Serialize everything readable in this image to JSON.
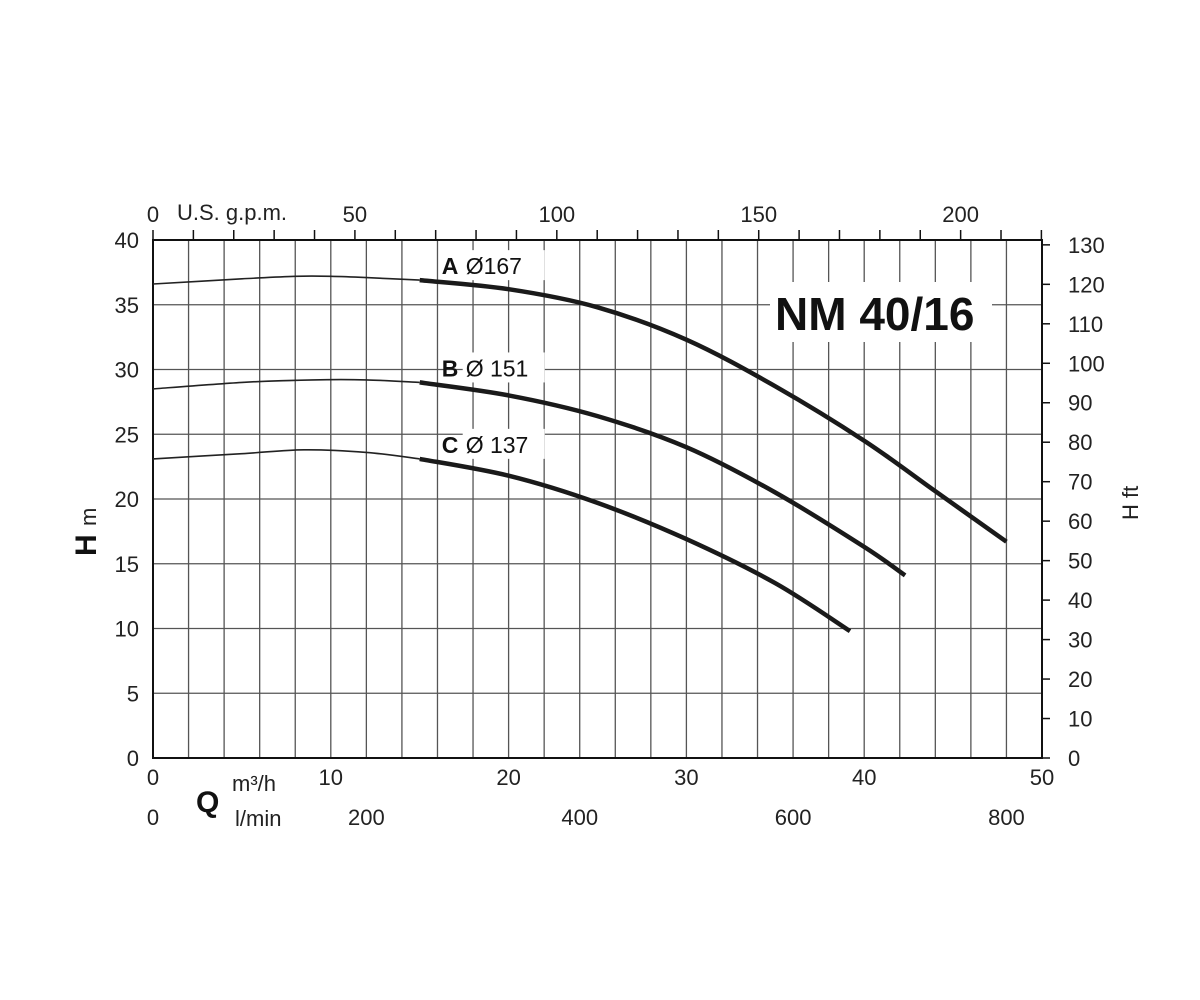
{
  "chart_data": {
    "type": "line",
    "title": "NM 40/16",
    "x_primary": {
      "label": "Q",
      "unit": "m³/h",
      "range": [
        0,
        50
      ],
      "ticks": [
        "0",
        "10",
        "20",
        "30",
        "40",
        "50"
      ]
    },
    "x_secondary_bottom": {
      "unit": "l/min",
      "range": [
        0,
        833.33
      ],
      "ticks": [
        "0",
        "200",
        "400",
        "600",
        "800"
      ]
    },
    "x_top": {
      "unit": "U.S. g.p.m.",
      "range": [
        0,
        220.15
      ],
      "ticks": [
        "0",
        "50",
        "100",
        "150",
        "200"
      ]
    },
    "y_left": {
      "label": "H",
      "unit": "m",
      "range": [
        0,
        40
      ],
      "ticks": [
        "0",
        "5",
        "10",
        "15",
        "20",
        "25",
        "30",
        "35",
        "40"
      ]
    },
    "y_right": {
      "label": "H ft",
      "range": [
        0,
        131.23
      ],
      "ticks": [
        "0",
        "10",
        "20",
        "30",
        "40",
        "50",
        "60",
        "70",
        "80",
        "90",
        "100",
        "110",
        "120",
        "130"
      ]
    },
    "grid": true,
    "series": [
      {
        "name": "A",
        "diameter_label": "Ø167",
        "operating_from_x": 15,
        "points": [
          [
            0,
            36.6
          ],
          [
            5,
            37.0
          ],
          [
            8,
            37.2
          ],
          [
            10,
            37.2
          ],
          [
            12,
            37.1
          ],
          [
            15,
            36.9
          ],
          [
            20,
            36.2
          ],
          [
            25,
            34.8
          ],
          [
            30,
            32.3
          ],
          [
            35,
            28.7
          ],
          [
            40,
            24.5
          ],
          [
            44,
            20.6
          ],
          [
            48,
            16.7
          ]
        ]
      },
      {
        "name": "B",
        "diameter_label": "Ø 151",
        "operating_from_x": 15,
        "points": [
          [
            0,
            28.5
          ],
          [
            5,
            29.0
          ],
          [
            9,
            29.2
          ],
          [
            12,
            29.2
          ],
          [
            15,
            29.0
          ],
          [
            20,
            28.0
          ],
          [
            25,
            26.4
          ],
          [
            30,
            24.0
          ],
          [
            35,
            20.5
          ],
          [
            40,
            16.3
          ],
          [
            42.3,
            14.1
          ]
        ]
      },
      {
        "name": "C",
        "diameter_label": "Ø 137",
        "operating_from_x": 15,
        "points": [
          [
            0,
            23.1
          ],
          [
            5,
            23.5
          ],
          [
            8.5,
            23.8
          ],
          [
            12,
            23.6
          ],
          [
            15,
            23.1
          ],
          [
            20,
            21.8
          ],
          [
            25,
            19.7
          ],
          [
            30,
            16.9
          ],
          [
            35,
            13.5
          ],
          [
            39.2,
            9.8
          ]
        ]
      }
    ]
  }
}
